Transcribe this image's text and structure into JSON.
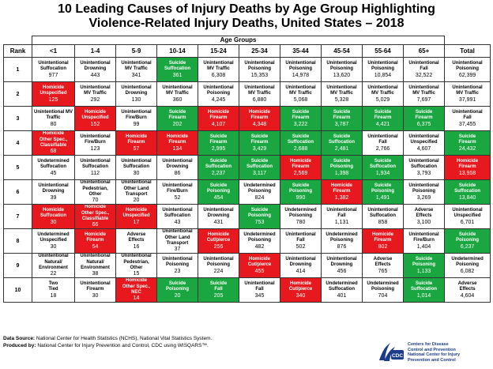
{
  "title_line1": "10 Leading Causes of Injury Deaths by Age Group Highlighting",
  "title_line2": "Violence-Related Injury Deaths, United States – 2018",
  "age_groups_label": "Age Groups",
  "rank_header": "Rank",
  "total_header": "Total",
  "age_headers": [
    "<1",
    "1-4",
    "5-9",
    "10-14",
    "15-24",
    "25-34",
    "35-44",
    "45-54",
    "55-64",
    "65+"
  ],
  "rows": [
    {
      "rank": "1",
      "cells": [
        {
          "l1": "Unintentional",
          "l2": "Suffocation",
          "n": "977",
          "c": "w"
        },
        {
          "l1": "Unintentional",
          "l2": "Drowning",
          "n": "443",
          "c": "w"
        },
        {
          "l1": "Unintentional",
          "l2": "MV Traffic",
          "n": "341",
          "c": "w"
        },
        {
          "l1": "Suicide",
          "l2": "Suffocation",
          "n": "361",
          "c": "g"
        },
        {
          "l1": "Unintentional",
          "l2": "MV Traffic",
          "n": "6,308",
          "c": "w"
        },
        {
          "l1": "Unintentional",
          "l2": "Poisoning",
          "n": "15,353",
          "c": "w"
        },
        {
          "l1": "Unintentional",
          "l2": "Poisoning",
          "n": "14,978",
          "c": "w"
        },
        {
          "l1": "Unintentional",
          "l2": "Poisoning",
          "n": "13,620",
          "c": "w"
        },
        {
          "l1": "Unintentional",
          "l2": "Poisoning",
          "n": "10,854",
          "c": "w"
        },
        {
          "l1": "Unintentional",
          "l2": "Fall",
          "n": "32,522",
          "c": "w"
        },
        {
          "l1": "Unintentional",
          "l2": "Poisoning",
          "n": "62,399",
          "c": "w"
        }
      ]
    },
    {
      "rank": "2",
      "cells": [
        {
          "l1": "Homicide",
          "l2": "Unspecified",
          "n": "125",
          "c": "r"
        },
        {
          "l1": "Unintentional",
          "l2": "MV Traffic",
          "n": "292",
          "c": "w"
        },
        {
          "l1": "Unintentional",
          "l2": "Drowning",
          "n": "130",
          "c": "w"
        },
        {
          "l1": "Unintentional",
          "l2": "MV Traffic",
          "n": "360",
          "c": "w"
        },
        {
          "l1": "Unintentional",
          "l2": "Poisoning",
          "n": "4,245",
          "c": "w"
        },
        {
          "l1": "Unintentional",
          "l2": "MV Traffic",
          "n": "6,880",
          "c": "w"
        },
        {
          "l1": "Unintentional",
          "l2": "MV Traffic",
          "n": "5,068",
          "c": "w"
        },
        {
          "l1": "Unintentional",
          "l2": "MV Traffic",
          "n": "5,328",
          "c": "w"
        },
        {
          "l1": "Unintentional",
          "l2": "MV Traffic",
          "n": "5,029",
          "c": "w"
        },
        {
          "l1": "Unintentional",
          "l2": "MV Traffic",
          "n": "7,697",
          "c": "w"
        },
        {
          "l1": "Unintentional",
          "l2": "MV Traffic",
          "n": "37,991",
          "c": "w"
        }
      ]
    },
    {
      "rank": "3",
      "cells": [
        {
          "l1": "Unintentional MV",
          "l2": "Traffic",
          "n": "80",
          "c": "w"
        },
        {
          "l1": "Homicide",
          "l2": "Unspecified",
          "n": "152",
          "c": "r"
        },
        {
          "l1": "Unintentional",
          "l2": "Fire/Burn",
          "n": "99",
          "c": "w"
        },
        {
          "l1": "Suicide",
          "l2": "Firearm",
          "n": "202",
          "c": "g"
        },
        {
          "l1": "Homicide",
          "l2": "Firearm",
          "n": "4,107",
          "c": "r"
        },
        {
          "l1": "Homicide",
          "l2": "Firearm",
          "n": "4,348",
          "c": "r"
        },
        {
          "l1": "Suicide",
          "l2": "Firearm",
          "n": "3,222",
          "c": "g"
        },
        {
          "l1": "Suicide",
          "l2": "Firearm",
          "n": "3,787",
          "c": "g"
        },
        {
          "l1": "Suicide",
          "l2": "Firearm",
          "n": "4,421",
          "c": "g"
        },
        {
          "l1": "Suicide",
          "l2": "Firearm",
          "n": "6,375",
          "c": "g"
        },
        {
          "l1": "Unintentional",
          "l2": "Fall",
          "n": "37,455",
          "c": "w"
        }
      ]
    },
    {
      "rank": "4",
      "cells": [
        {
          "l1": "Homicide",
          "l2": "Other Spec.,",
          "l3": "Classifiable",
          "n": "68",
          "c": "r"
        },
        {
          "l1": "Unintentional",
          "l2": "Fire/Burn",
          "n": "123",
          "c": "w"
        },
        {
          "l1": "Homicide",
          "l2": "Firearm",
          "n": "57",
          "c": "r"
        },
        {
          "l1": "Homicide",
          "l2": "Firearm",
          "n": "134",
          "c": "r"
        },
        {
          "l1": "Suicide",
          "l2": "Firearm",
          "n": "2,995",
          "c": "g"
        },
        {
          "l1": "Suicide",
          "l2": "Firearm",
          "n": "3,429",
          "c": "g"
        },
        {
          "l1": "Suicide",
          "l2": "Suffocation",
          "n": "2,688",
          "c": "g"
        },
        {
          "l1": "Suicide",
          "l2": "Suffocation",
          "n": "2,481",
          "c": "g"
        },
        {
          "l1": "Unintentional",
          "l2": "Fall",
          "n": "2,766",
          "c": "w"
        },
        {
          "l1": "Unintentional",
          "l2": "Unspecified",
          "n": "4,607",
          "c": "w"
        },
        {
          "l1": "Suicide",
          "l2": "Firearm",
          "n": "24,432",
          "c": "g"
        }
      ]
    },
    {
      "rank": "5",
      "cells": [
        {
          "l1": "Undetermined",
          "l2": "Suffocation",
          "n": "45",
          "c": "w"
        },
        {
          "l1": "Unintentional",
          "l2": "Suffocation",
          "n": "112",
          "c": "w"
        },
        {
          "l1": "Unintentional",
          "l2": "Suffocation",
          "n": "30",
          "c": "w"
        },
        {
          "l1": "Unintentional",
          "l2": "Drowning",
          "n": "86",
          "c": "w"
        },
        {
          "l1": "Suicide",
          "l2": "Suffocation",
          "n": "2,237",
          "c": "g"
        },
        {
          "l1": "Suicide",
          "l2": "Suffocation",
          "n": "3,117",
          "c": "g"
        },
        {
          "l1": "Homicide",
          "l2": "Firearm",
          "n": "2,569",
          "c": "r"
        },
        {
          "l1": "Suicide",
          "l2": "Poisoning",
          "n": "1,398",
          "c": "g"
        },
        {
          "l1": "Suicide",
          "l2": "Suffocation",
          "n": "1,934",
          "c": "g"
        },
        {
          "l1": "Unintentional",
          "l2": "Suffocation",
          "n": "3,793",
          "c": "w"
        },
        {
          "l1": "Homicide",
          "l2": "Firearm",
          "n": "13,958",
          "c": "r"
        }
      ]
    },
    {
      "rank": "6",
      "cells": [
        {
          "l1": "Unintentional",
          "l2": "Drowning",
          "n": "39",
          "c": "w"
        },
        {
          "l1": "Unintentional",
          "l2": "Pedestrian,",
          "l3": "Other",
          "n": "70",
          "c": "w"
        },
        {
          "l1": "Unintentional",
          "l2": "Other Land",
          "l3": "Transport",
          "n": "20",
          "c": "w"
        },
        {
          "l1": "Unintentional",
          "l2": "Fire/Burn",
          "n": "52",
          "c": "w"
        },
        {
          "l1": "Suicide",
          "l2": "Poisoning",
          "n": "454",
          "c": "g"
        },
        {
          "l1": "Undetermined",
          "l2": "Poisoning",
          "n": "824",
          "c": "w"
        },
        {
          "l1": "Suicide",
          "l2": "Poisoning",
          "n": "990",
          "c": "g"
        },
        {
          "l1": "Homicide",
          "l2": "Firearm",
          "n": "1,382",
          "c": "r"
        },
        {
          "l1": "Suicide",
          "l2": "Poisoning",
          "n": "1,491",
          "c": "g"
        },
        {
          "l1": "Unintentional",
          "l2": "Poisoning",
          "n": "3,269",
          "c": "w"
        },
        {
          "l1": "Suicide",
          "l2": "Suffocation",
          "n": "13,840",
          "c": "g"
        }
      ]
    },
    {
      "rank": "7",
      "cells": [
        {
          "l1": "Homicide",
          "l2": "Suffocation",
          "n": "30",
          "c": "r"
        },
        {
          "l1": "Homicide",
          "l2": "Other Spec.,",
          "l3": "Classifiable",
          "n": "66",
          "c": "r"
        },
        {
          "l1": "Homicide",
          "l2": "Unspecified",
          "n": "17",
          "c": "r"
        },
        {
          "l1": "Unintentional",
          "l2": "Suffocation",
          "n": "43",
          "c": "w"
        },
        {
          "l1": "Unintentional",
          "l2": "Drowning",
          "n": "431",
          "c": "w"
        },
        {
          "l1": "Suicide",
          "l2": "Poisoning",
          "n": "753",
          "c": "g"
        },
        {
          "l1": "Undetermined",
          "l2": "Poisoning",
          "n": "780",
          "c": "w"
        },
        {
          "l1": "Unintentional",
          "l2": "Fall",
          "n": "1,131",
          "c": "w"
        },
        {
          "l1": "Unintentional",
          "l2": "Suffocation",
          "n": "858",
          "c": "w"
        },
        {
          "l1": "Adverse",
          "l2": "Effects",
          "n": "3,100",
          "c": "w"
        },
        {
          "l1": "Unintentional",
          "l2": "Unspecified",
          "n": "6,701",
          "c": "w"
        }
      ]
    },
    {
      "rank": "8",
      "cells": [
        {
          "l1": "Undetermined",
          "l2": "Unspecified",
          "n": "30",
          "c": "w"
        },
        {
          "l1": "Homicide",
          "l2": "Firearm",
          "n": "54",
          "c": "r"
        },
        {
          "l1": "Adverse",
          "l2": "Effects",
          "n": "16",
          "c": "w"
        },
        {
          "l1": "Unintentional",
          "l2": "Other Land",
          "l3": "Transport",
          "n": "37",
          "c": "w"
        },
        {
          "l1": "Homicide",
          "l2": "Cut/pierce",
          "n": "256",
          "c": "r"
        },
        {
          "l1": "Undetermined",
          "l2": "Poisoning",
          "n": "482",
          "c": "w"
        },
        {
          "l1": "Unintentional",
          "l2": "Fall",
          "n": "502",
          "c": "w"
        },
        {
          "l1": "Undetermined",
          "l2": "Poisoning",
          "n": "876",
          "c": "w"
        },
        {
          "l1": "Homicide",
          "l2": "Firearm",
          "n": "802",
          "c": "r"
        },
        {
          "l1": "Unintentional",
          "l2": "Fire/Burn",
          "n": "1,404",
          "c": "w"
        },
        {
          "l1": "Suicide",
          "l2": "Poisoning",
          "n": "6,237",
          "c": "g"
        }
      ]
    },
    {
      "rank": "9",
      "cells": [
        {
          "l1": "Unintentional",
          "l2": "Natural/",
          "l3": "Environment",
          "n": "22",
          "c": "w"
        },
        {
          "l1": "Unintentional",
          "l2": "Natural/",
          "l3": "Environment",
          "n": "38",
          "c": "w"
        },
        {
          "l1": "Unintentional",
          "l2": "Pedestrian,",
          "l3": "Other",
          "n": "15",
          "c": "w"
        },
        {
          "l1": "Unintentional",
          "l2": "Poisoning",
          "n": "23",
          "c": "w"
        },
        {
          "l1": "Unintentional",
          "l2": "Poisoning",
          "n": "224",
          "c": "w"
        },
        {
          "l1": "Homicide",
          "l2": "Cut/pierce",
          "n": "455",
          "c": "r"
        },
        {
          "l1": "Unintentional",
          "l2": "Drowning",
          "n": "414",
          "c": "w"
        },
        {
          "l1": "Unintentional",
          "l2": "Drowning",
          "n": "456",
          "c": "w"
        },
        {
          "l1": "Adverse",
          "l2": "Effects",
          "n": "765",
          "c": "w"
        },
        {
          "l1": "Suicide",
          "l2": "Poisoning",
          "n": "1,133",
          "c": "g"
        },
        {
          "l1": "Undetermined",
          "l2": "Poisoning",
          "n": "6,082",
          "c": "w"
        }
      ]
    },
    {
      "rank": "10",
      "cells": [
        {
          "l1": "Two",
          "l2": "Tied",
          "n": "18",
          "c": "w"
        },
        {
          "l1": "Unintentional",
          "l2": "Firearm",
          "n": "30",
          "c": "w"
        },
        {
          "l1": "Homicide",
          "l2": "Other Spec.,",
          "l3": "NEC",
          "n": "14",
          "c": "r"
        },
        {
          "l1": "Suicide",
          "l2": "Poisoning",
          "n": "20",
          "c": "g"
        },
        {
          "l1": "Suicide",
          "l2": "Fall",
          "n": "205",
          "c": "g"
        },
        {
          "l1": "Unintentional",
          "l2": "Fall",
          "n": "345",
          "c": "w"
        },
        {
          "l1": "Homicide",
          "l2": "Cut/pierce",
          "n": "340",
          "c": "r"
        },
        {
          "l1": "Undetermined",
          "l2": "Suffocation",
          "n": "401",
          "c": "w"
        },
        {
          "l1": "Undetermined",
          "l2": "Poisoning",
          "n": "704",
          "c": "w"
        },
        {
          "l1": "Suicide",
          "l2": "Suffocation",
          "n": "1,014",
          "c": "g"
        },
        {
          "l1": "Adverse",
          "l2": "Effects",
          "n": "4,604",
          "c": "w"
        }
      ]
    }
  ],
  "footer": {
    "source_label": "Data Source:",
    "source_text": "National Center for Health Statistics (NCHS), National Vital Statistics System.",
    "produced_label": "Produced by:",
    "produced_text": "National Center for Injury Prevention and Control, CDC using WISQARS™."
  },
  "org": {
    "logo_text": "CDC",
    "line1": "Centers for Disease",
    "line2": "Control and Prevention",
    "line3": "National Center for Injury",
    "line4": "Prevention and Control"
  },
  "colors": {
    "homicide": "#e8191e",
    "suicide": "#1aa640",
    "neutral": "#ffffff"
  }
}
